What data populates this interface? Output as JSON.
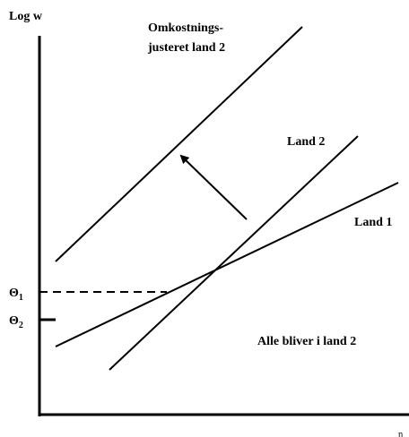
{
  "axes": {
    "y_label": "Log w",
    "x_label": "η"
  },
  "lines": [
    {
      "label_lines": [
        "Omkostnings-",
        "justeret land 2"
      ]
    },
    {
      "label": "Land 2"
    },
    {
      "label": "Land 1"
    }
  ],
  "thresholds": [
    {
      "symbol": "Θ",
      "subscript": "1"
    },
    {
      "symbol": "Θ",
      "subscript": "2"
    }
  ],
  "region_label": "Alle bliver i land 2"
}
